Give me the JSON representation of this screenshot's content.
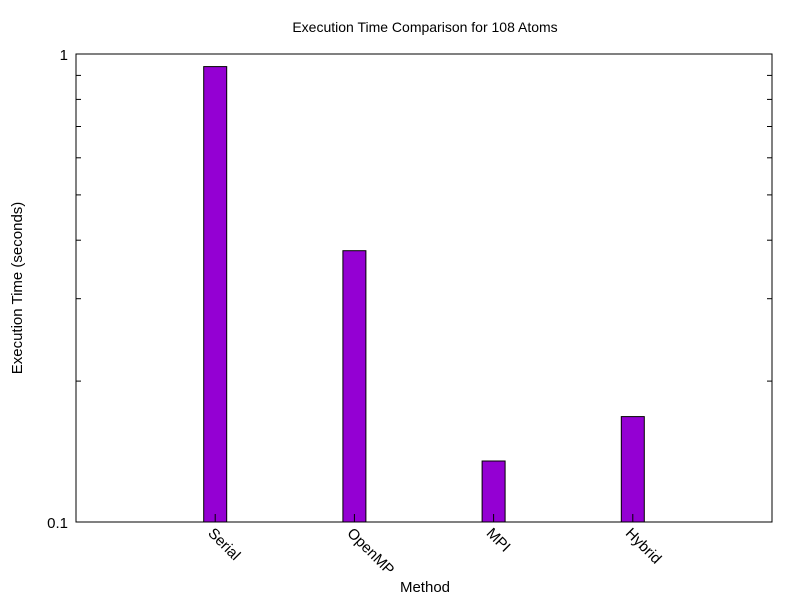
{
  "chart_data": {
    "type": "bar",
    "title": "Execution Time Comparison for 108 Atoms",
    "xlabel": "Method",
    "ylabel": "Execution Time (seconds)",
    "categories": [
      "Serial",
      "OpenMP",
      "MPI",
      "Hybrid"
    ],
    "values": [
      0.94,
      0.38,
      0.135,
      0.168
    ],
    "yscale": "log",
    "ylim": [
      0.1,
      1
    ],
    "yticks": [
      {
        "value": 0.1,
        "label": "0.1"
      },
      {
        "value": 1,
        "label": "1"
      }
    ],
    "bar_color": "#9400d3",
    "grid": false,
    "legend": "none"
  }
}
